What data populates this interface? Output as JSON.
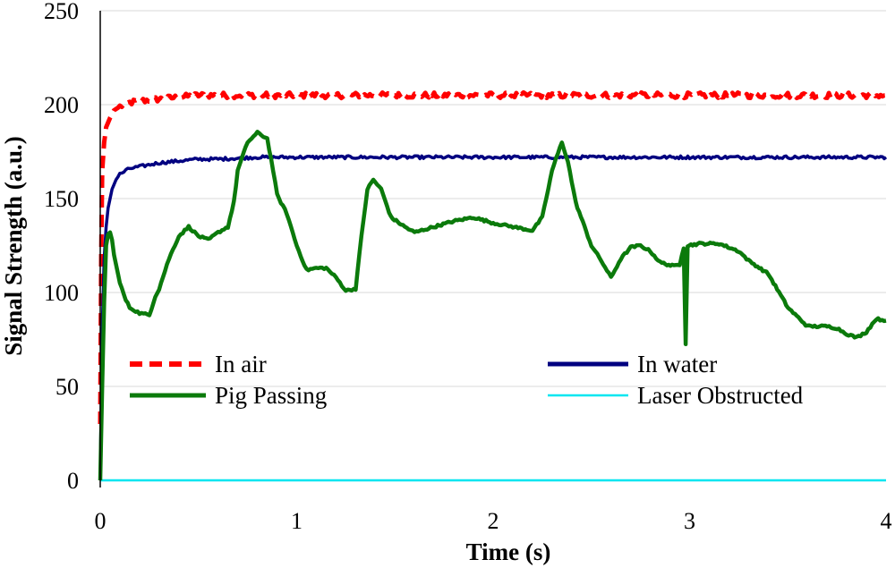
{
  "chart_data": {
    "type": "line",
    "title": "",
    "xlabel": "Time (s)",
    "ylabel": "Signal Strength (a.u.)",
    "xlim": [
      0,
      4
    ],
    "ylim": [
      0,
      250
    ],
    "x_ticks": [
      "0",
      "1",
      "2",
      "3",
      "4"
    ],
    "y_ticks": [
      "0",
      "50",
      "100",
      "150",
      "200",
      "250"
    ],
    "grid": "horizontal",
    "legend_position": "lower-center",
    "series": [
      {
        "name": "In air",
        "color": "#ff0000",
        "style": "dashed",
        "noise": 1.5,
        "x": [
          0,
          0.005,
          0.01,
          0.02,
          0.03,
          0.05,
          0.07,
          0.1,
          0.15,
          0.2,
          0.3,
          0.4,
          0.5,
          0.6,
          0.8,
          1.0,
          1.5,
          2.0,
          2.5,
          3.0,
          3.5,
          4.0
        ],
        "y": [
          30,
          120,
          165,
          180,
          188,
          193,
          197,
          199,
          201,
          202,
          203,
          204,
          205,
          205,
          205,
          205,
          205,
          205,
          205,
          205,
          205,
          205
        ]
      },
      {
        "name": "In water",
        "color": "#000080",
        "style": "solid",
        "noise": 0.8,
        "x": [
          0,
          0.01,
          0.02,
          0.03,
          0.04,
          0.06,
          0.08,
          0.1,
          0.15,
          0.2,
          0.3,
          0.4,
          0.5,
          0.6,
          0.8,
          1.0,
          1.5,
          2.0,
          2.5,
          3.0,
          3.5,
          4.0
        ],
        "y": [
          0,
          80,
          118,
          135,
          145,
          155,
          160,
          163,
          166,
          167,
          169,
          170,
          171,
          171,
          172,
          172,
          172,
          172,
          172,
          172,
          172,
          172
        ]
      },
      {
        "name": "Pig Passing",
        "color": "#0b7a0b",
        "style": "solid",
        "noise": 0.6,
        "x": [
          0,
          0.01,
          0.02,
          0.03,
          0.04,
          0.05,
          0.06,
          0.07,
          0.1,
          0.13,
          0.15,
          0.2,
          0.25,
          0.28,
          0.3,
          0.35,
          0.4,
          0.45,
          0.5,
          0.55,
          0.6,
          0.65,
          0.68,
          0.7,
          0.75,
          0.8,
          0.85,
          0.88,
          0.9,
          0.95,
          1.0,
          1.05,
          1.1,
          1.15,
          1.2,
          1.25,
          1.3,
          1.33,
          1.36,
          1.39,
          1.43,
          1.48,
          1.55,
          1.6,
          1.7,
          1.8,
          1.9,
          2.0,
          2.05,
          2.1,
          2.2,
          2.25,
          2.3,
          2.35,
          2.38,
          2.42,
          2.5,
          2.55,
          2.6,
          2.65,
          2.7,
          2.75,
          2.8,
          2.85,
          2.92,
          2.95,
          2.96,
          2.97,
          2.98,
          2.99,
          3.05,
          3.15,
          3.25,
          3.3,
          3.4,
          3.5,
          3.6,
          3.7,
          3.75,
          3.8,
          3.85,
          3.9,
          3.95,
          4.0
        ],
        "y": [
          0,
          50,
          95,
          125,
          131,
          132,
          128,
          120,
          105,
          96,
          92,
          89,
          88,
          98,
          102,
          118,
          130,
          135,
          130,
          128,
          132,
          135,
          148,
          165,
          180,
          185,
          182,
          165,
          152,
          142,
          125,
          112,
          113,
          113,
          108,
          101,
          102,
          130,
          155,
          160,
          155,
          140,
          135,
          132,
          135,
          138,
          140,
          137,
          136,
          135,
          133,
          140,
          165,
          180,
          170,
          148,
          125,
          117,
          108,
          118,
          124,
          125,
          122,
          116,
          114,
          115,
          120,
          124,
          73,
          125,
          126,
          126,
          122,
          117,
          110,
          92,
          82,
          82,
          81,
          78,
          76,
          79,
          86,
          85
        ]
      },
      {
        "name": "Laser Obstructed",
        "color": "#00e6f0",
        "style": "solid",
        "noise": 0,
        "x": [
          0,
          4.0
        ],
        "y": [
          0,
          0
        ]
      }
    ]
  }
}
